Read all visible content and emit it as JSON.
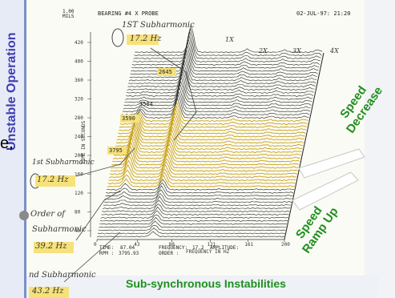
{
  "header": {
    "bearing": "BEARING #4 X PROBE",
    "timestamp": "02-JUL-97: 21:20",
    "amplitude_scale": "1.00\nMILS"
  },
  "slide": {
    "left_label": "Unstable Operation",
    "speed_decrease": "Speed\nDecrease",
    "speed_ramp_up": "Speed\nRamp Up",
    "bottom_label": "Sub-synchronous Instabilities",
    "cut_char": "e,"
  },
  "annotations": {
    "first_sub_top": "1ST Subharmonic",
    "freq_top": "17.2 Hz",
    "first_sub_left": "1st Subharmonic",
    "freq_left": "17.2 Hz",
    "order_of": "Order of",
    "subharmonic": "Subharmonic",
    "freq_39": "39.2 Hz",
    "nd_sub": "nd Subharmonic",
    "freq_43": "43.2 Hz"
  },
  "time_markers": [
    "2645",
    "3584",
    "3590",
    "3795"
  ],
  "footer": {
    "time_label": "TIME:",
    "rpm_label": "RPM :",
    "time_val": "87.04",
    "rpm_val": "3795.93",
    "freq_label": "FREQUENCY:",
    "order_label": "ORDER :",
    "freq_val": "17.2",
    "amp_label": "AMPLITUDE:"
  },
  "chart_data": {
    "type": "waterfall",
    "title": "BEARING #4 X PROBE",
    "xlabel": "FREQUENCY IN HZ",
    "ylabel": "TIME IN SECONDS",
    "x_ticks": [
      "0",
      "43",
      "80",
      "121",
      "161",
      "200"
    ],
    "y_ticks": [
      "40",
      "80",
      "120",
      "160",
      "200",
      "240",
      "280",
      "320",
      "360",
      "400",
      "420"
    ],
    "xlim": [
      0,
      200
    ],
    "ylim": [
      0,
      420
    ],
    "order_markers": [
      "1X",
      "2X",
      "3X",
      "4X"
    ],
    "series_count": 60
  }
}
